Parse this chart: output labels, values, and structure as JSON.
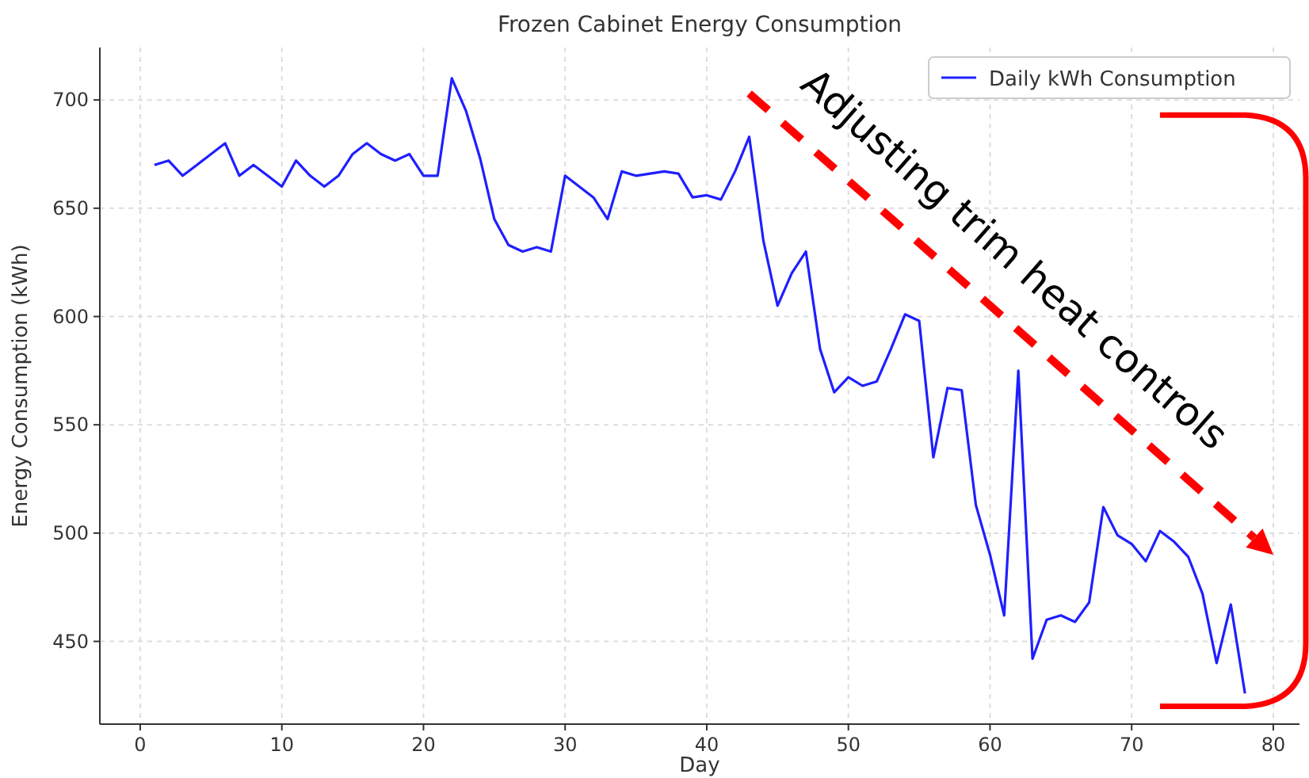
{
  "chart_data": {
    "type": "line",
    "title": "Frozen Cabinet Energy Consumption",
    "xlabel": "Day",
    "ylabel": "Energy Consumption (kWh)",
    "x": [
      1,
      2,
      3,
      4,
      5,
      6,
      7,
      8,
      9,
      10,
      11,
      12,
      13,
      14,
      15,
      16,
      17,
      18,
      19,
      20,
      21,
      22,
      23,
      24,
      25,
      26,
      27,
      28,
      29,
      30,
      31,
      32,
      33,
      34,
      35,
      36,
      37,
      38,
      39,
      40,
      41,
      42,
      43,
      44,
      45,
      46,
      47,
      48,
      49,
      50,
      51,
      52,
      53,
      54,
      55,
      56,
      57,
      58,
      59,
      60,
      61,
      62,
      63,
      64,
      65,
      66,
      67,
      68,
      69,
      70,
      71,
      72,
      73,
      74,
      75,
      76,
      77,
      78
    ],
    "series": [
      {
        "name": "Daily kWh Consumption",
        "color": "#1f1fff",
        "values": [
          670,
          672,
          665,
          670,
          675,
          680,
          665,
          670,
          665,
          660,
          672,
          665,
          660,
          665,
          675,
          680,
          675,
          672,
          675,
          665,
          665,
          710,
          695,
          673,
          645,
          633,
          630,
          632,
          630,
          665,
          660,
          655,
          645,
          667,
          665,
          666,
          667,
          666,
          655,
          656,
          654,
          667,
          683,
          635,
          605,
          620,
          630,
          585,
          565,
          572,
          568,
          570,
          585,
          601,
          598,
          535,
          567,
          566,
          513,
          490,
          462,
          575,
          442,
          460,
          462,
          459,
          468,
          512,
          499,
          495,
          487,
          501,
          496,
          489,
          472,
          440,
          467,
          426
        ]
      }
    ],
    "xlim": [
      -2.85,
      81.85
    ],
    "ylim": [
      411.8,
      724.2
    ],
    "xticks": [
      0,
      10,
      20,
      30,
      40,
      50,
      60,
      70,
      80
    ],
    "yticks": [
      450,
      500,
      550,
      600,
      650,
      700
    ],
    "grid": true,
    "legend": "top right",
    "marker": "none",
    "line_style": "solid",
    "annotations": [
      "Adjusting trim heat controls"
    ]
  }
}
